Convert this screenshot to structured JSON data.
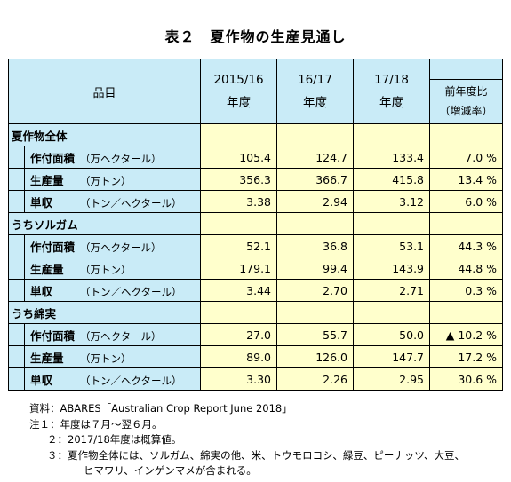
{
  "title": "表２　夏作物の生産見通し",
  "header": {
    "item": "品目",
    "years": [
      {
        "line1": "2015/16",
        "line2": "年度"
      },
      {
        "line1": "16/17",
        "line2": "年度"
      },
      {
        "line1": "17/18",
        "line2": "年度"
      }
    ],
    "change_line1": "前年度比",
    "change_line2": "（増減率）"
  },
  "groups": [
    {
      "name": "夏作物全体",
      "rows": [
        {
          "name": "作付面積",
          "unit": "（万ヘクタール）",
          "v1": "105.4",
          "v2": "124.7",
          "v3": "133.4",
          "chg": "7.0 %"
        },
        {
          "name": "生産量",
          "unit": "（万トン）",
          "v1": "356.3",
          "v2": "366.7",
          "v3": "415.8",
          "chg": "13.4 %"
        },
        {
          "name": "単収",
          "unit": "（トン／ヘクタール）",
          "v1": "3.38",
          "v2": "2.94",
          "v3": "3.12",
          "chg": "6.0 %"
        }
      ]
    },
    {
      "name": "うちソルガム",
      "rows": [
        {
          "name": "作付面積",
          "unit": "（万ヘクタール）",
          "v1": "52.1",
          "v2": "36.8",
          "v3": "53.1",
          "chg": "44.3 %"
        },
        {
          "name": "生産量",
          "unit": "（万トン）",
          "v1": "179.1",
          "v2": "99.4",
          "v3": "143.9",
          "chg": "44.8 %"
        },
        {
          "name": "単収",
          "unit": "（トン／ヘクタール）",
          "v1": "3.44",
          "v2": "2.70",
          "v3": "2.71",
          "chg": "0.3 %"
        }
      ]
    },
    {
      "name": "うち綿実",
      "rows": [
        {
          "name": "作付面積",
          "unit": "（万ヘクタール）",
          "v1": "27.0",
          "v2": "55.7",
          "v3": "50.0",
          "chg": "▲ 10.2 %"
        },
        {
          "name": "生産量",
          "unit": "（万トン）",
          "v1": "89.0",
          "v2": "126.0",
          "v3": "147.7",
          "chg": "17.2 %"
        },
        {
          "name": "単収",
          "unit": "（トン／ヘクタール）",
          "v1": "3.30",
          "v2": "2.26",
          "v3": "2.95",
          "chg": "30.6 %"
        }
      ]
    }
  ],
  "notes": {
    "source": "資料：ABARES「Australian Crop Report June 2018」",
    "note1": "注１：年度は７月～翌６月。",
    "note2": "２：2017/18年度は概算値。",
    "note3a": "３：夏作物全体には、ソルガム、綿実の他、米、トウモロコシ、緑豆、ピーナッツ、大豆、",
    "note3b": "ヒマワリ、インゲンマメが含まれる。"
  },
  "colors": {
    "header_blue": "#c9ebf7",
    "cell_yellow": "#ffffcc"
  }
}
